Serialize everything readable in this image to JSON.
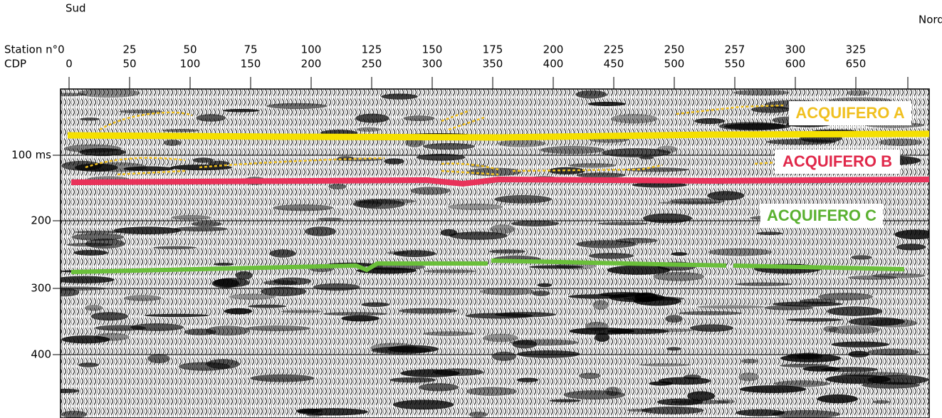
{
  "header": {
    "left": "Sud",
    "right": "Nord"
  },
  "stations": {
    "label": "Station n°0",
    "ticks": [
      "25",
      "50",
      "75",
      "100",
      "125",
      "150",
      "175",
      "200",
      "225",
      "250",
      "257",
      "300",
      "325"
    ]
  },
  "cdp": {
    "label": "CDP",
    "ticks": [
      "0",
      "50",
      "100",
      "150",
      "200",
      "250",
      "300",
      "350",
      "400",
      "450",
      "500",
      "550",
      "600",
      "650"
    ]
  },
  "time_axis": {
    "ticks": [
      "100 ms",
      "200",
      "300",
      "400"
    ]
  },
  "annotations": [
    "ACQUIFERO A",
    "ACQUIFERO B",
    "ACQUIFERO C"
  ]
}
